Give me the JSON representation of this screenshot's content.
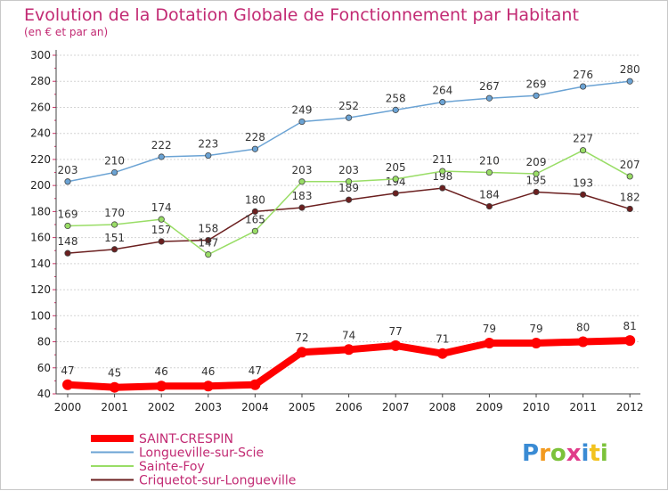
{
  "chart_data": {
    "type": "line",
    "title": "Evolution de la Dotation Globale de Fonctionnement par Habitant",
    "subtitle": "(en € et par an)",
    "xlabel": "",
    "ylabel": "",
    "categories": [
      "2000",
      "2001",
      "2002",
      "2003",
      "2004",
      "2005",
      "2006",
      "2007",
      "2008",
      "2009",
      "2010",
      "2011",
      "2012"
    ],
    "ylim": [
      40,
      300
    ],
    "yticks": [
      40,
      60,
      80,
      100,
      120,
      140,
      160,
      180,
      200,
      220,
      240,
      260,
      280,
      300
    ],
    "grid": "horizontal",
    "legend_position": "bottom-left",
    "series": [
      {
        "name": "SAINT-CRESPIN",
        "color": "#ff0000",
        "values": [
          47,
          45,
          46,
          46,
          47,
          72,
          74,
          77,
          71,
          79,
          79,
          80,
          81
        ],
        "labels": [
          "47",
          "45",
          "46",
          "46",
          "47",
          "72",
          "74",
          "77",
          "71",
          "79",
          "79",
          "80",
          "81"
        ]
      },
      {
        "name": "Longueville-sur-Scie",
        "color": "#6ba3d4",
        "values": [
          203,
          210,
          222,
          223,
          228,
          249,
          252,
          258,
          264,
          267,
          269,
          276,
          280
        ],
        "labels": [
          "203",
          "210",
          "222",
          "223",
          "228",
          "249",
          "252",
          "258",
          "264",
          "267",
          "269",
          "276",
          "280"
        ]
      },
      {
        "name": "Sainte-Foy",
        "color": "#99dd66",
        "values": [
          169,
          170,
          174,
          147,
          165,
          203,
          203,
          205,
          211,
          210,
          209,
          227,
          207
        ],
        "labels": [
          "169",
          "170",
          "174",
          "147",
          "165",
          "203",
          "203",
          "205",
          "211",
          "210",
          "209",
          "227",
          "207"
        ]
      },
      {
        "name": "Criquetot-sur-Longueville",
        "color": "#6b1f1f",
        "values": [
          148,
          151,
          157,
          158,
          180,
          183,
          189,
          194,
          198,
          184,
          195,
          193,
          182
        ],
        "labels": [
          "148",
          "151",
          "157",
          "158",
          "180",
          "183",
          "189",
          "194",
          "198",
          "184",
          "195",
          "193",
          "182"
        ]
      }
    ]
  },
  "logo": {
    "letters": [
      "P",
      "r",
      "o",
      "x",
      "i",
      "t",
      "i"
    ],
    "colors": [
      "#3a8bd4",
      "#f29a1f",
      "#7cc23a",
      "#e03c8a",
      "#3a8bd4",
      "#f2c21f",
      "#7cc23a"
    ]
  }
}
